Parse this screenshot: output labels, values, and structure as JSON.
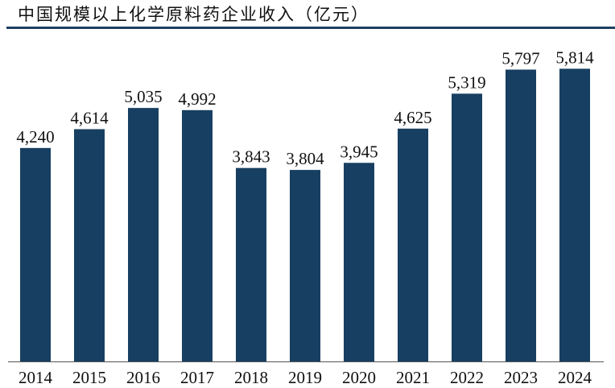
{
  "chart_data": {
    "type": "bar",
    "title": "中国规模以上化学原料药企业收入（亿元）",
    "categories": [
      "2014",
      "2015",
      "2016",
      "2017",
      "2018",
      "2019",
      "2020",
      "2021",
      "2022",
      "2023",
      "2024"
    ],
    "values": [
      4240,
      4614,
      5035,
      4992,
      3843,
      3804,
      3945,
      4625,
      5319,
      5797,
      5814
    ],
    "data_labels": [
      "4,240",
      "4,614",
      "5,035",
      "4,992",
      "3,843",
      "3,804",
      "3,945",
      "4,625",
      "5,319",
      "5,797",
      "5,814"
    ],
    "xlabel": "",
    "ylabel": "",
    "ylim": [
      0,
      6620
    ],
    "grid": false,
    "legend": "none",
    "bar_color": "#173f61"
  }
}
